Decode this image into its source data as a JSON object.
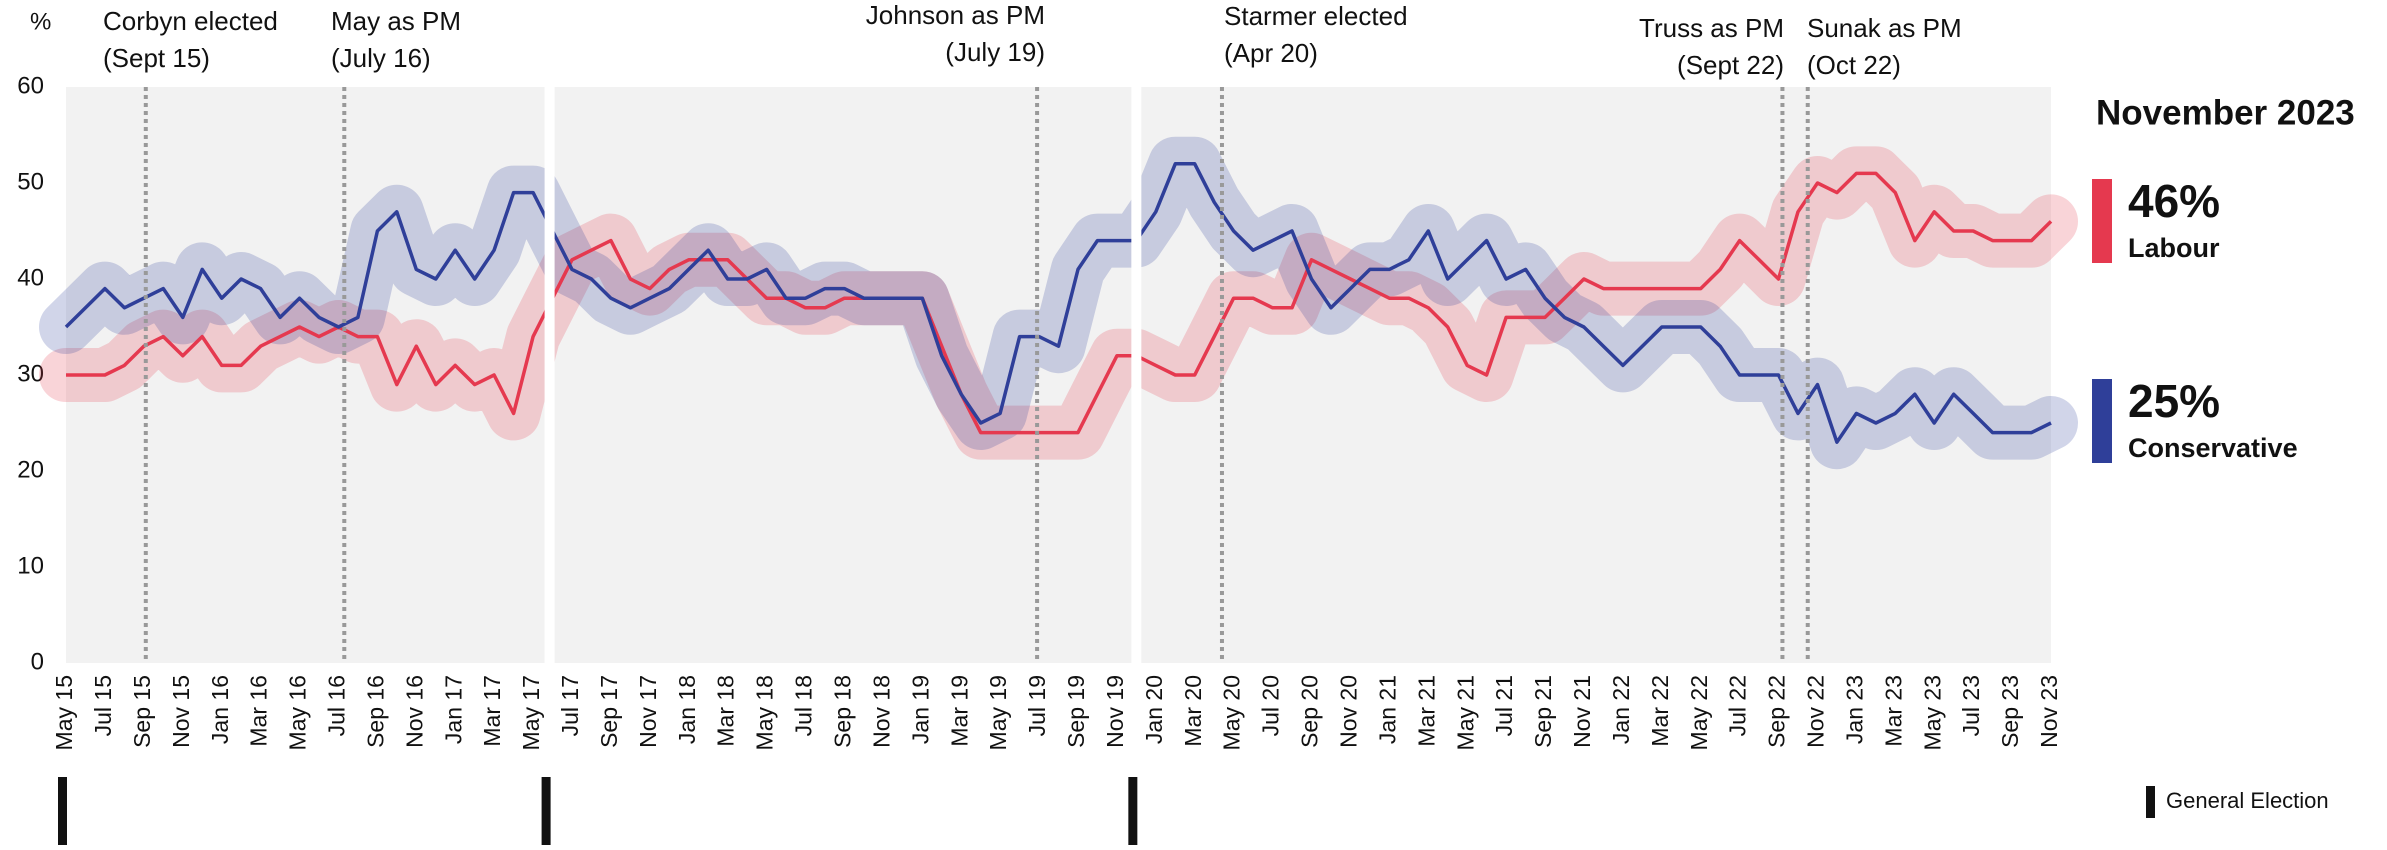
{
  "chart_data": {
    "type": "line",
    "y_unit_label": "%",
    "categories": [
      "May 15",
      null,
      "Jul 15",
      null,
      "Sep 15",
      null,
      "Nov 15",
      null,
      "Jan 16",
      null,
      "Mar 16",
      null,
      "May 16",
      null,
      "Jul 16",
      null,
      "Sep 16",
      null,
      "Nov 16",
      null,
      "Jan 17",
      null,
      "Mar 17",
      null,
      "May 17",
      null,
      "Jul 17",
      null,
      "Sep 17",
      null,
      "Nov 17",
      null,
      "Jan 18",
      null,
      "Mar 18",
      null,
      "May 18",
      null,
      "Jul 18",
      null,
      "Sep 18",
      null,
      "Nov 18",
      null,
      "Jan 19",
      null,
      "Mar 19",
      null,
      "May 19",
      null,
      "Jul 19",
      null,
      "Sep 19",
      null,
      "Nov 19",
      null,
      "Jan 20",
      null,
      "Mar 20",
      null,
      "May 20",
      null,
      "Jul 20",
      null,
      "Sep 20",
      null,
      "Nov 20",
      null,
      "Jan 21",
      null,
      "Mar 21",
      null,
      "May 21",
      null,
      "Jul 21",
      null,
      "Sep 21",
      null,
      "Nov 21",
      null,
      "Jan 22",
      null,
      "Mar 22",
      null,
      "May 22",
      null,
      "Jul 22",
      null,
      "Sep 22",
      null,
      "Nov 22",
      null,
      "Jan 23",
      null,
      "Mar 23",
      null,
      "May 23",
      null,
      "Jul 23",
      null,
      "Sep 23",
      null,
      "Nov 23"
    ],
    "series": [
      {
        "name": "Labour",
        "color": "#e5394f",
        "values": [
          30,
          30,
          30,
          31,
          33,
          34,
          32,
          34,
          31,
          31,
          33,
          34,
          35,
          34,
          35,
          34,
          34,
          29,
          33,
          29,
          31,
          29,
          30,
          26,
          34,
          38,
          42,
          43,
          44,
          40,
          39,
          41,
          42,
          42,
          42,
          40,
          38,
          38,
          37,
          37,
          38,
          38,
          38,
          38,
          38,
          33,
          28,
          24,
          24,
          24,
          24,
          24,
          24,
          28,
          32,
          32,
          31,
          30,
          30,
          34,
          38,
          38,
          37,
          37,
          42,
          41,
          40,
          39,
          38,
          38,
          37,
          35,
          31,
          30,
          36,
          36,
          36,
          38,
          40,
          39,
          39,
          39,
          39,
          39,
          39,
          41,
          44,
          42,
          40,
          47,
          50,
          49,
          51,
          51,
          49,
          44,
          47,
          45,
          45,
          44,
          44,
          44,
          46
        ],
        "value_labels": [
          null,
          null,
          null,
          null,
          null,
          null,
          null,
          null,
          null,
          null,
          null,
          null,
          null,
          null,
          null,
          null,
          null,
          null,
          null,
          null,
          null,
          null,
          null,
          null,
          null,
          null,
          null,
          null,
          null,
          null,
          null,
          null,
          null,
          null,
          null,
          null,
          null,
          null,
          null,
          null,
          null,
          null,
          null,
          null,
          null,
          null,
          null,
          null,
          null,
          null,
          null,
          null,
          null,
          null,
          null,
          null,
          null,
          null,
          null,
          null,
          null,
          null,
          null,
          null,
          null,
          null,
          null,
          null,
          null,
          null,
          null,
          null,
          null,
          null,
          null,
          null,
          null,
          null,
          null,
          null,
          null,
          null,
          null,
          null,
          null,
          null,
          null,
          null,
          null,
          null,
          null,
          null,
          null,
          null,
          null,
          null,
          null,
          null,
          null,
          null,
          null,
          null,
          "46%"
        ]
      },
      {
        "name": "Conservative",
        "color": "#2f3f99",
        "values": [
          35,
          37,
          39,
          37,
          38,
          39,
          36,
          41,
          38,
          40,
          39,
          36,
          38,
          36,
          35,
          36,
          45,
          47,
          41,
          40,
          43,
          40,
          43,
          49,
          49,
          45,
          41,
          40,
          38,
          37,
          38,
          39,
          41,
          43,
          40,
          40,
          41,
          38,
          38,
          39,
          39,
          38,
          38,
          38,
          38,
          32,
          28,
          25,
          26,
          34,
          34,
          33,
          41,
          44,
          44,
          44,
          47,
          52,
          52,
          48,
          45,
          43,
          44,
          45,
          40,
          37,
          39,
          41,
          41,
          42,
          45,
          40,
          42,
          44,
          40,
          41,
          38,
          36,
          35,
          33,
          31,
          33,
          35,
          35,
          35,
          33,
          30,
          30,
          30,
          26,
          29,
          23,
          26,
          25,
          26,
          28,
          25,
          28,
          26,
          24,
          24,
          24,
          25
        ],
        "value_labels": [
          null,
          null,
          null,
          null,
          null,
          null,
          null,
          null,
          null,
          null,
          null,
          null,
          null,
          null,
          null,
          null,
          null,
          null,
          null,
          null,
          null,
          null,
          null,
          null,
          null,
          null,
          null,
          null,
          null,
          null,
          null,
          null,
          null,
          null,
          null,
          null,
          null,
          null,
          null,
          null,
          null,
          null,
          null,
          null,
          null,
          null,
          null,
          null,
          null,
          null,
          null,
          null,
          null,
          null,
          null,
          null,
          null,
          null,
          null,
          null,
          null,
          null,
          null,
          null,
          null,
          null,
          null,
          null,
          null,
          null,
          null,
          null,
          null,
          null,
          null,
          null,
          null,
          null,
          null,
          null,
          null,
          null,
          null,
          null,
          null,
          null,
          null,
          null,
          null,
          null,
          null,
          null,
          null,
          null,
          null,
          null,
          null,
          null,
          null,
          null,
          null,
          null,
          "25%"
        ]
      }
    ],
    "ylim": [
      0,
      60
    ],
    "yticks": [
      0,
      10,
      20,
      30,
      40,
      50,
      60
    ],
    "grid": false,
    "latest_title": "November 2023",
    "annotations": [
      {
        "label": "Corbyn elected",
        "date": "(Sept 15)"
      },
      {
        "label": "May as PM",
        "date": "(July 16)"
      },
      {
        "label": "Johnson as PM",
        "date": "(July 19)"
      },
      {
        "label": "Starmer elected",
        "date": "(Apr 20)"
      },
      {
        "label": "Truss as PM",
        "date": "(Sept 22)"
      },
      {
        "label": "Sunak as PM",
        "date": "(Oct 22)"
      }
    ],
    "election_legend": "General Election"
  }
}
